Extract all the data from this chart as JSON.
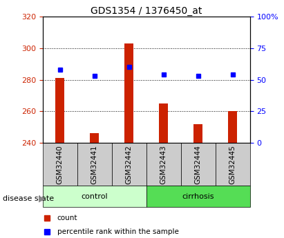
{
  "title": "GDS1354 / 1376450_at",
  "samples": [
    "GSM32440",
    "GSM32441",
    "GSM32442",
    "GSM32443",
    "GSM32444",
    "GSM32445"
  ],
  "bar_values": [
    281,
    246,
    303,
    265,
    252,
    260
  ],
  "percentile_values": [
    58,
    53,
    60,
    54,
    53,
    54
  ],
  "bar_base": 240,
  "ylim_left": [
    240,
    320
  ],
  "ylim_right": [
    0,
    100
  ],
  "yticks_left": [
    240,
    260,
    280,
    300,
    320
  ],
  "yticks_right": [
    0,
    25,
    50,
    75,
    100
  ],
  "bar_color": "#cc2200",
  "dot_color": "#0000ff",
  "bar_width": 0.25,
  "control_color": "#ccffcc",
  "cirrhosis_color": "#55dd55",
  "gray_box_color": "#cccccc",
  "legend_items": [
    {
      "label": "count",
      "color": "#cc2200"
    },
    {
      "label": "percentile rank within the sample",
      "color": "#0000ff"
    }
  ],
  "left_tick_color": "#cc2200",
  "right_tick_color": "#0000ff"
}
